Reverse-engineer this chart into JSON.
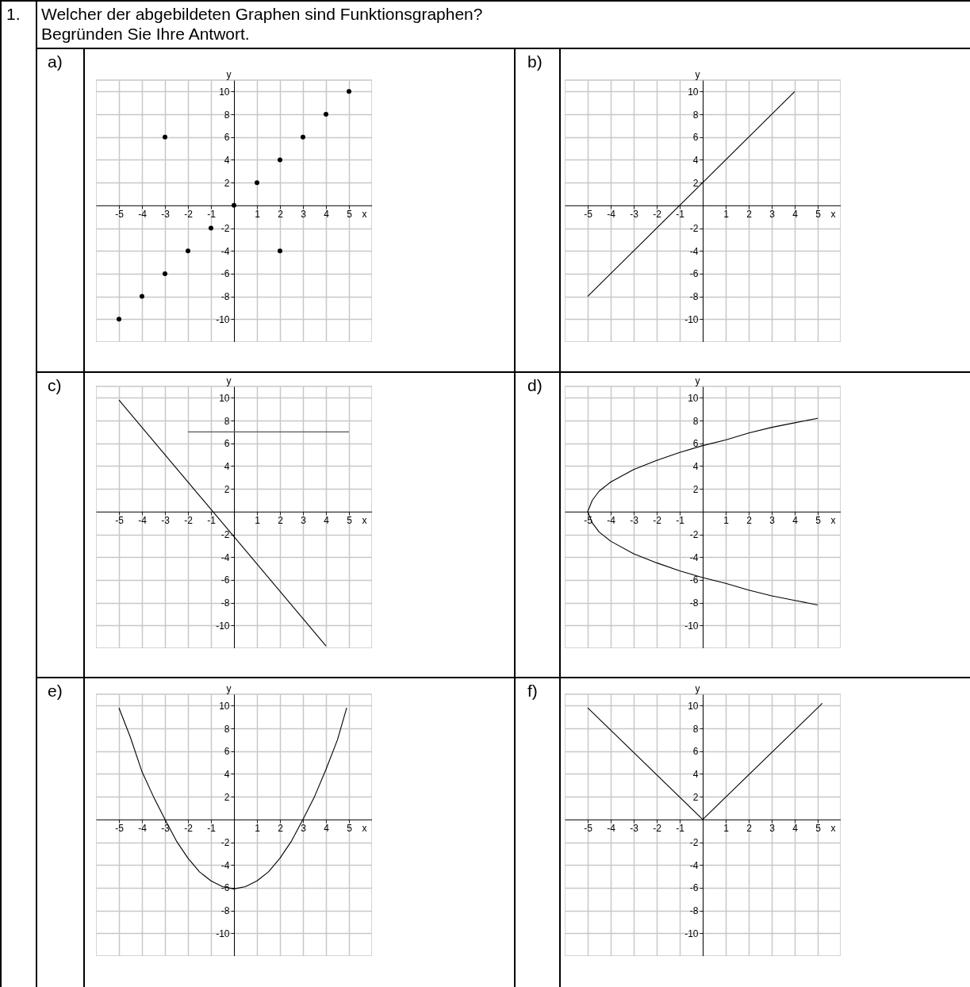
{
  "chart_data": [
    {
      "type": "scatter",
      "title": "a)",
      "annotations": [
        "1.",
        "Welcher der abgebildeten Graphen sind Funktionsgraphen?",
        "Begründen Sie Ihre Antwort."
      ],
      "xlabel": "x",
      "ylabel": "y",
      "x": [
        -5,
        -4,
        -3,
        -3,
        -2,
        -1,
        0,
        1,
        2,
        2,
        3,
        4,
        5
      ],
      "values": [
        -10,
        -8,
        -6,
        6,
        -4,
        -2,
        0,
        2,
        4,
        -4,
        6,
        8,
        10
      ],
      "color": "#000000",
      "marker": "circle",
      "xlim": [
        -6,
        6
      ],
      "ylim": [
        -12,
        11
      ],
      "xticks": [
        -5,
        -4,
        -3,
        -2,
        -1,
        1,
        2,
        3,
        4,
        5
      ],
      "yticks": [
        -10,
        -8,
        -6,
        -4,
        -2,
        2,
        4,
        6,
        8,
        10
      ],
      "grid": true
    },
    {
      "type": "line",
      "title": "b)",
      "xlabel": "x",
      "ylabel": "y",
      "series": [
        {
          "color": "#000000",
          "x": [
            -5,
            4
          ],
          "values": [
            -8,
            10
          ]
        }
      ],
      "xlim": [
        -6,
        6
      ],
      "ylim": [
        -12,
        11
      ],
      "xticks": [
        -5,
        -4,
        -3,
        -2,
        -1,
        1,
        2,
        3,
        4,
        5
      ],
      "yticks": [
        -10,
        -8,
        -6,
        -4,
        -2,
        2,
        4,
        6,
        8,
        10
      ],
      "grid": true
    },
    {
      "type": "line",
      "title": "c)",
      "xlabel": "x",
      "ylabel": "y",
      "series": [
        {
          "color": "#000000",
          "x": [
            -5,
            4
          ],
          "values": [
            9.8,
            -11.8
          ]
        },
        {
          "color": "#555555",
          "x": [
            -2,
            5
          ],
          "values": [
            7,
            7
          ]
        }
      ],
      "xlim": [
        -6,
        6
      ],
      "ylim": [
        -12,
        11
      ],
      "xticks": [
        -5,
        -4,
        -3,
        -2,
        -1,
        1,
        2,
        3,
        4,
        5
      ],
      "yticks": [
        -10,
        -8,
        -6,
        -4,
        -2,
        2,
        4,
        6,
        8,
        10
      ],
      "grid": true
    },
    {
      "type": "line",
      "title": "d)",
      "xlabel": "x",
      "ylabel": "y",
      "series": [
        {
          "color": "#000000",
          "x": [
            5,
            4,
            3,
            2,
            1,
            0,
            -1,
            -2,
            -3,
            -4,
            -4.5,
            -4.8,
            -5,
            -4.8,
            -4.5,
            -4,
            -3,
            -2,
            -1,
            0,
            1,
            2,
            3,
            4,
            5
          ],
          "values": [
            8.2,
            7.8,
            7.4,
            6.9,
            6.3,
            5.8,
            5.2,
            4.5,
            3.7,
            2.6,
            1.8,
            1,
            0,
            -1,
            -1.8,
            -2.6,
            -3.7,
            -4.5,
            -5.2,
            -5.8,
            -6.3,
            -6.9,
            -7.4,
            -7.8,
            -8.2
          ]
        }
      ],
      "xlim": [
        -6,
        6
      ],
      "ylim": [
        -12,
        11
      ],
      "xticks": [
        -5,
        -4,
        -3,
        -2,
        -1,
        1,
        2,
        3,
        4,
        5
      ],
      "yticks": [
        -10,
        -8,
        -6,
        -4,
        -2,
        2,
        4,
        6,
        8,
        10
      ],
      "grid": true
    },
    {
      "type": "line",
      "title": "e)",
      "xlabel": "x",
      "ylabel": "y",
      "series": [
        {
          "color": "#000000",
          "x": [
            -5,
            -4.5,
            -4,
            -3.5,
            -3,
            -2.5,
            -2,
            -1.5,
            -1,
            -0.5,
            0,
            0.5,
            1,
            1.5,
            2,
            2.5,
            3,
            3.5,
            4,
            4.5,
            4.9
          ],
          "values": [
            9.8,
            7.2,
            4.2,
            2,
            0,
            -1.9,
            -3.4,
            -4.6,
            -5.4,
            -5.9,
            -6.1,
            -5.9,
            -5.4,
            -4.6,
            -3.4,
            -1.9,
            0,
            2,
            4.4,
            7,
            9.8
          ]
        }
      ],
      "xlim": [
        -6,
        6
      ],
      "ylim": [
        -12,
        11
      ],
      "xticks": [
        -5,
        -4,
        -3,
        -2,
        -1,
        1,
        2,
        3,
        4,
        5
      ],
      "yticks": [
        -10,
        -8,
        -6,
        -4,
        -2,
        2,
        4,
        6,
        8,
        10
      ],
      "grid": true
    },
    {
      "type": "line",
      "title": "f)",
      "xlabel": "x",
      "ylabel": "y",
      "series": [
        {
          "color": "#000000",
          "x": [
            -5,
            0,
            5.2
          ],
          "values": [
            9.8,
            0,
            10.2
          ]
        }
      ],
      "xlim": [
        -6,
        6
      ],
      "ylim": [
        -12,
        11
      ],
      "xticks": [
        -5,
        -4,
        -3,
        -2,
        -1,
        1,
        2,
        3,
        4,
        5
      ],
      "yticks": [
        -10,
        -8,
        -6,
        -4,
        -2,
        2,
        4,
        6,
        8,
        10
      ],
      "grid": true
    }
  ]
}
